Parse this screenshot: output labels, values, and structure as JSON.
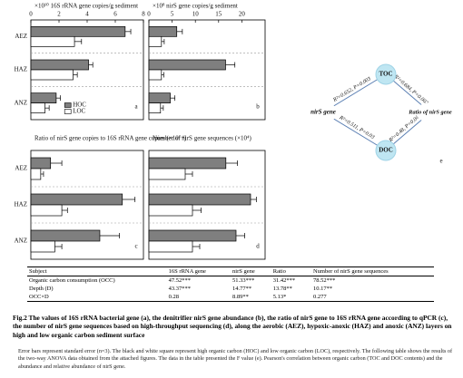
{
  "chart_data": [
    {
      "type": "bar",
      "orientation": "horizontal",
      "title": "×10¹⁰ 16S rRNA gene copies/g sediment",
      "panel_label": "a",
      "categories": [
        "AEZ",
        "HAZ",
        "ANZ"
      ],
      "xlim": [
        0,
        8
      ],
      "xticks": [
        0,
        2,
        4,
        6,
        8
      ],
      "legend": "lower right",
      "series": [
        {
          "name": "HOC",
          "color": "#7f7f7f",
          "values": [
            6.7,
            4.1,
            1.8
          ],
          "errors": [
            0.4,
            0.3,
            0.3
          ]
        },
        {
          "name": "LOC",
          "color": "#ffffff",
          "values": [
            3.1,
            3.0,
            1.0
          ],
          "errors": [
            0.5,
            0.3,
            0.3
          ]
        }
      ]
    },
    {
      "type": "bar",
      "orientation": "horizontal",
      "title": "×10⁸ nirS gene copies/g sediment",
      "panel_label": "b",
      "xlim": [
        0,
        25
      ],
      "xticks": [
        0,
        5,
        10,
        15,
        20
      ],
      "series": [
        {
          "color": "#7f7f7f",
          "values": [
            6.0,
            16.5,
            4.6
          ],
          "errors": [
            1.2,
            2.0,
            1.0
          ]
        },
        {
          "color": "#ffffff",
          "values": [
            2.7,
            2.7,
            2.5
          ],
          "errors": [
            0.6,
            0.5,
            0.6
          ]
        }
      ]
    },
    {
      "type": "bar",
      "orientation": "horizontal",
      "title": "Ratio of nirS gene copies to 16S rRNA gene copies (×10⁻⁴)",
      "panel_label": "c",
      "categories": [
        "AEZ",
        "HAZ",
        "ANZ"
      ],
      "xlim": [
        0,
        8
      ],
      "series": [
        {
          "color": "#7f7f7f",
          "values": [
            1.4,
            6.5,
            4.9
          ],
          "errors": [
            0.8,
            0.9,
            1.4
          ]
        },
        {
          "color": "#ffffff",
          "values": [
            0.7,
            2.2,
            1.7
          ],
          "errors": [
            0.2,
            0.4,
            0.5
          ]
        }
      ]
    },
    {
      "type": "bar",
      "orientation": "horizontal",
      "title": "Number of nirS gene sequences (×10⁴)",
      "panel_label": "d",
      "xlim": [
        0,
        8
      ],
      "series": [
        {
          "color": "#7f7f7f",
          "values": [
            5.3,
            7.0,
            6.0
          ],
          "errors": [
            0.8,
            0.4,
            0.6
          ]
        },
        {
          "color": "#ffffff",
          "values": [
            2.5,
            3.0,
            3.0
          ],
          "errors": [
            0.5,
            0.6,
            0.5
          ]
        }
      ]
    }
  ],
  "diagram": {
    "panel_label": "e",
    "nodes": [
      {
        "label": "TOC"
      },
      {
        "label": "DOC"
      },
      {
        "label": "nirS gene"
      },
      {
        "label": "Ratio of nirS gene"
      }
    ],
    "edges": [
      {
        "label": "R²=0.652, P=0.003"
      },
      {
        "label": "R²=0.684, P=0.002"
      },
      {
        "label": "R²=0.511, P=0.03"
      },
      {
        "label": "R²=0.48, P=0.044"
      }
    ]
  },
  "table": {
    "header": [
      "Subject",
      "16S rRNA gene",
      "nirS gene",
      "Ratio",
      "Number of nirS gene sequences"
    ],
    "rows": [
      [
        "Organic carbon consumption (OCC)",
        "47.52***",
        "51.33***",
        "31.42***",
        "78.52***"
      ],
      [
        "Depth (D)",
        "43.37***",
        "14.77**",
        "13.78**",
        "10.17**"
      ],
      [
        "OCC×D",
        "0.28",
        "8.89**",
        "5.13*",
        "0.277"
      ]
    ]
  },
  "caption": "Fig.2 The values of 16S rRNA bacterial gene (a), the denitrifier nirS gene abundance (b), the ratio of nirS gene to 16S rRNA gene according to qPCR (c), the number of nirS gene sequences based on high-throughput sequencing (d), along the aerobic (AEZ), hypoxic-anoxic (HAZ) and anoxic (ANZ) layers on high and low organic carbon sediment surface",
  "note": "Error bars represent standard error (n=3). The black and white square represent high organic carbon (HOC) and low organic carbon (LOC), respectively. The following table shows the results of the two-way ANOVA data obtained from the attached figures. The data in the table presented the F value (e). Pearson's correlation between organic carbon (TOC and DOC contents) and the abundance and relative abundance of nirS gene."
}
